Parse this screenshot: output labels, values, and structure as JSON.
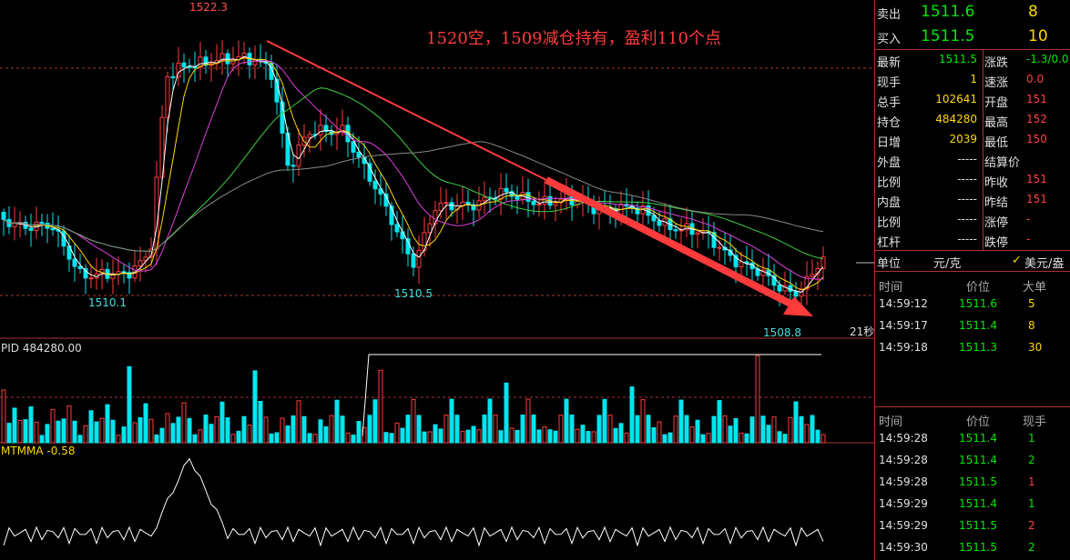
{
  "chart": {
    "annotation": "1520空，1509减仓持有，盈利110个点",
    "high_label": "1522.3",
    "low_labels": [
      "1510.1",
      "1510.5",
      "1508.8"
    ],
    "timer": "21秒",
    "volume_label": "PID 484280.00",
    "indicator_label": "MTMMA -0.58"
  },
  "quote": {
    "ask": {
      "label": "卖出",
      "price": "1511.6",
      "qty": "8"
    },
    "bid": {
      "label": "买入",
      "price": "1511.5",
      "qty": "10"
    }
  },
  "stats": [
    [
      "最新",
      "1511.5",
      "涨跌",
      "-1.3/0.0"
    ],
    [
      "现手",
      "1",
      "速涨",
      "0.0"
    ],
    [
      "总手",
      "102641",
      "开盘",
      "151"
    ],
    [
      "持仓",
      "484280",
      "最高",
      "152"
    ],
    [
      "日增",
      "2039",
      "最低",
      "150"
    ],
    [
      "外盘",
      "-----",
      "结算价",
      ""
    ],
    [
      "比例",
      "-----",
      "昨收",
      "151"
    ],
    [
      "内盘",
      "-----",
      "昨结",
      "151"
    ],
    [
      "比例",
      "-----",
      "涨停",
      "-"
    ],
    [
      "杠杆",
      "-----",
      "跌停",
      "-"
    ]
  ],
  "unit": {
    "label": "单位",
    "value": "元/克",
    "alt": "美元/盎"
  },
  "big_orders": {
    "headers": [
      "时间",
      "价位",
      "大单"
    ],
    "rows": [
      [
        "14:59:12",
        "1511.6",
        "5"
      ],
      [
        "14:59:17",
        "1511.4",
        "8"
      ],
      [
        "14:59:18",
        "1511.3",
        "30"
      ]
    ]
  },
  "trades": {
    "headers": [
      "时间",
      "价位",
      "现手"
    ],
    "rows": [
      [
        "14:59:28",
        "1511.4",
        "1"
      ],
      [
        "14:59:28",
        "1511.4",
        "2"
      ],
      [
        "14:59:28",
        "1511.5",
        "1"
      ],
      [
        "14:59:29",
        "1511.4",
        "1"
      ],
      [
        "14:59:29",
        "1511.5",
        "2"
      ],
      [
        "14:59:30",
        "1511.5",
        "2"
      ]
    ]
  }
}
